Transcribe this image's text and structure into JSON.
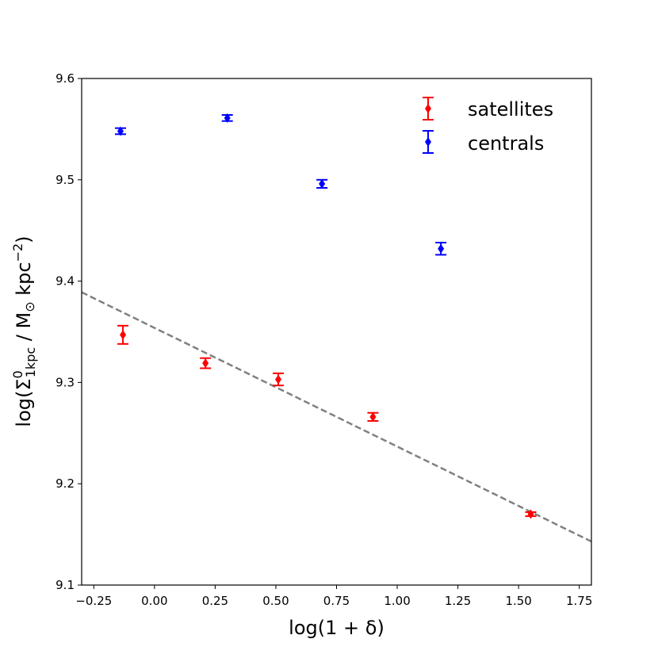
{
  "chart_data": {
    "type": "scatter",
    "xlabel": "log(1 + δ)",
    "ylabel": {
      "prefix": "log(Σ",
      "sup": "0",
      "sub": "1kpc",
      "mid": " / M",
      "sun_sub": "⊙",
      "unit": " kpc",
      "unit_sup": "−2",
      "suffix": ")"
    },
    "xlim": [
      -0.3,
      1.8
    ],
    "ylim": [
      9.1,
      9.6
    ],
    "x_ticks": [
      -0.25,
      0.0,
      0.25,
      0.5,
      0.75,
      1.0,
      1.25,
      1.5,
      1.75
    ],
    "x_tick_labels": [
      "−0.25",
      "0.00",
      "0.25",
      "0.50",
      "0.75",
      "1.00",
      "1.25",
      "1.50",
      "1.75"
    ],
    "y_ticks": [
      9.1,
      9.2,
      9.3,
      9.4,
      9.5,
      9.6
    ],
    "y_tick_labels": [
      "9.1",
      "9.2",
      "9.3",
      "9.4",
      "9.5",
      "9.6"
    ],
    "grid": false,
    "legend_position": "top-right",
    "series": [
      {
        "name": "satellites",
        "color": "#ff0000",
        "marker": "diamond",
        "x": [
          -0.13,
          0.21,
          0.51,
          0.9,
          1.55
        ],
        "y": [
          9.347,
          9.319,
          9.303,
          9.266,
          9.17
        ],
        "yerr": [
          0.009,
          0.005,
          0.006,
          0.004,
          0.002
        ]
      },
      {
        "name": "centrals",
        "color": "#0000ff",
        "marker": "diamond",
        "x": [
          -0.14,
          0.3,
          0.69,
          1.18
        ],
        "y": [
          9.548,
          9.561,
          9.496,
          9.432
        ],
        "yerr": [
          0.003,
          0.003,
          0.004,
          0.006
        ]
      }
    ],
    "fit_line": {
      "color": "#808080",
      "style": "dashed",
      "x": [
        -0.3,
        1.8
      ],
      "y": [
        9.389,
        9.143
      ]
    }
  }
}
